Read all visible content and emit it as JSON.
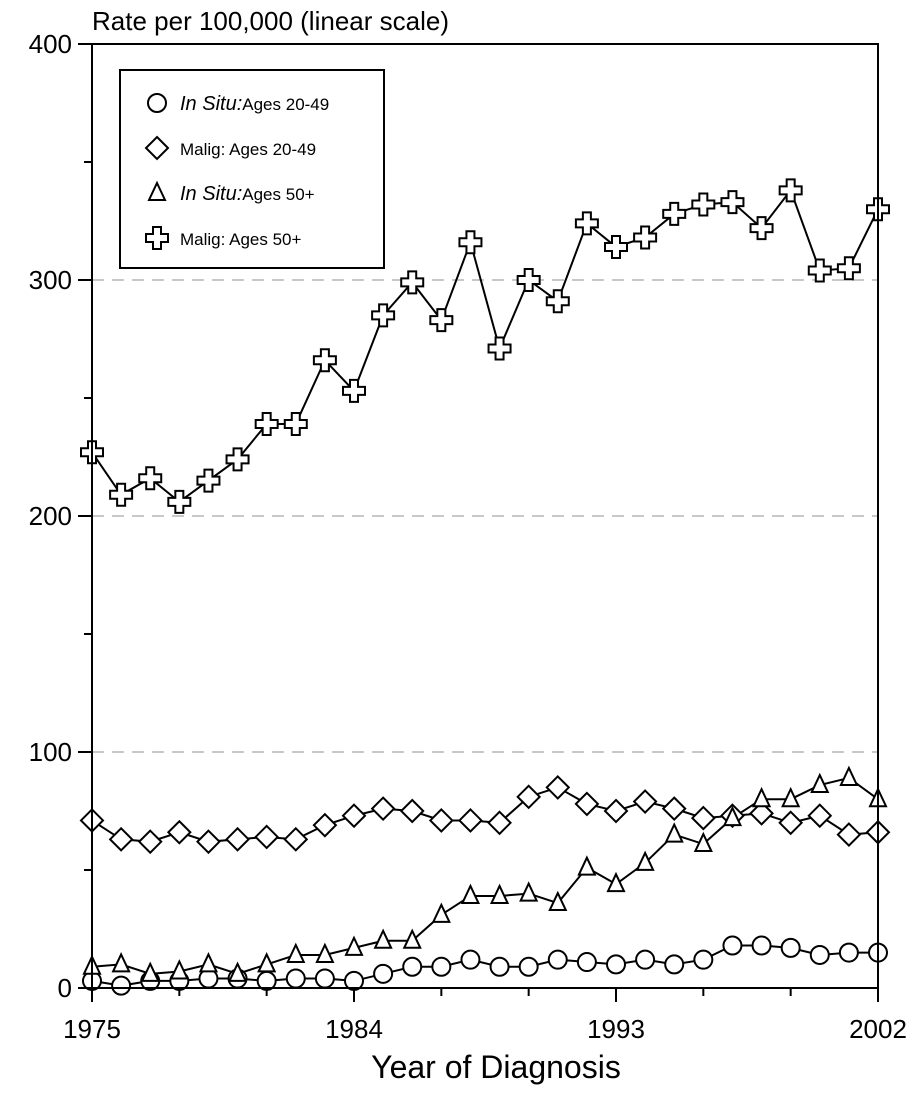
{
  "chart_data": {
    "type": "line",
    "title": "",
    "ylabel": "Rate per 100,000 (linear scale)",
    "xlabel": "Year of Diagnosis",
    "xlim": [
      1975,
      2002
    ],
    "ylim": [
      0,
      400
    ],
    "x_ticks": [
      1975,
      1984,
      1993,
      2002
    ],
    "y_ticks": [
      0,
      100,
      200,
      300,
      400
    ],
    "grid": "dashed horizontal at 100, 200, 300",
    "legend_position": "top-left",
    "x": [
      1975,
      1976,
      1977,
      1978,
      1979,
      1980,
      1981,
      1982,
      1983,
      1984,
      1985,
      1986,
      1987,
      1988,
      1989,
      1990,
      1991,
      1992,
      1993,
      1994,
      1995,
      1996,
      1997,
      1998,
      1999,
      2000,
      2001,
      2002
    ],
    "series": [
      {
        "name": "Ages 20-49",
        "name_prefix": "In Situ:",
        "marker": "circle",
        "values": [
          3,
          1,
          3,
          3,
          4,
          4,
          3,
          4,
          4,
          3,
          6,
          9,
          9,
          12,
          9,
          9,
          12,
          11,
          10,
          12,
          10,
          12,
          18,
          18,
          17,
          14,
          15,
          15
        ]
      },
      {
        "name": "Malig: Ages 20-49",
        "name_prefix": "",
        "marker": "diamond",
        "values": [
          71,
          63,
          62,
          66,
          62,
          63,
          64,
          63,
          69,
          73,
          76,
          75,
          71,
          71,
          70,
          81,
          85,
          78,
          75,
          79,
          76,
          72,
          73,
          74,
          70,
          73,
          65,
          66
        ]
      },
      {
        "name": "Ages 50+",
        "name_prefix": "In Situ:",
        "marker": "triangle",
        "values": [
          9,
          10,
          6,
          7,
          10,
          6,
          10,
          14,
          14,
          17,
          20,
          20,
          31,
          39,
          39,
          40,
          36,
          51,
          44,
          53,
          65,
          61,
          72,
          80,
          80,
          86,
          89,
          80
        ]
      },
      {
        "name": "Malig: Ages 50+",
        "name_prefix": "",
        "marker": "cross",
        "values": [
          227,
          209,
          216,
          206,
          215,
          224,
          239,
          239,
          266,
          253,
          285,
          299,
          283,
          316,
          271,
          300,
          291,
          324,
          314,
          318,
          328,
          332,
          333,
          322,
          338,
          304,
          305,
          330
        ]
      }
    ]
  }
}
